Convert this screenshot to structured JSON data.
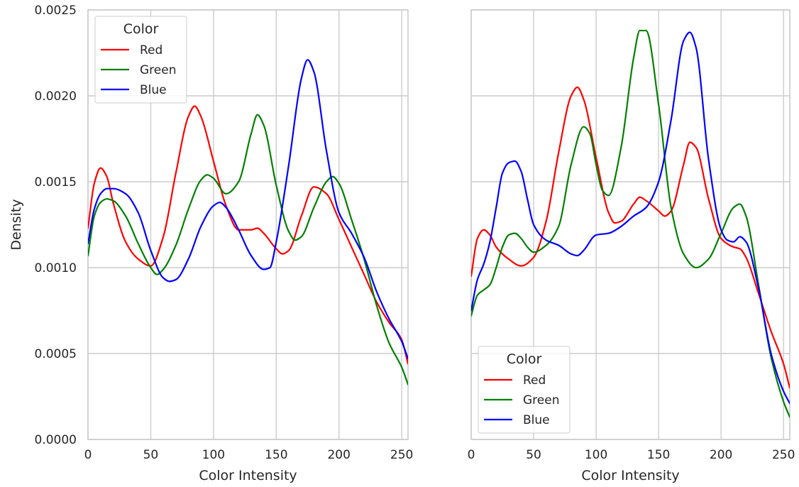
{
  "chart_data": [
    {
      "type": "line",
      "title": "",
      "xlabel": "Color Intensity",
      "ylabel": "Density",
      "xlim": [
        0,
        255
      ],
      "ylim": [
        0,
        0.0025
      ],
      "xticks": [
        0,
        50,
        100,
        150,
        200,
        250
      ],
      "yticks": [
        0.0,
        0.0005,
        0.001,
        0.0015,
        0.002,
        0.0025
      ],
      "ytick_labels": [
        "0.0000",
        "0.0005",
        "0.0010",
        "0.0015",
        "0.0020",
        "0.0025"
      ],
      "grid": true,
      "legend": {
        "title": "Color",
        "placement": "upper-left"
      },
      "series": [
        {
          "name": "Red",
          "color": "#ff0000",
          "x": [
            0,
            5,
            10,
            15,
            20,
            30,
            40,
            50,
            60,
            70,
            80,
            85,
            90,
            100,
            110,
            120,
            130,
            135,
            140,
            150,
            155,
            160,
            170,
            180,
            190,
            200,
            210,
            220,
            230,
            240,
            250,
            255
          ],
          "y": [
            0.00123,
            0.00149,
            0.00158,
            0.00153,
            0.00138,
            0.00115,
            0.00105,
            0.00101,
            0.00118,
            0.00155,
            0.00188,
            0.00194,
            0.00188,
            0.00162,
            0.00136,
            0.00122,
            0.00122,
            0.00123,
            0.0012,
            0.00111,
            0.00108,
            0.0011,
            0.0013,
            0.00147,
            0.00143,
            0.00128,
            0.00112,
            0.00096,
            0.0008,
            0.00068,
            0.00058,
            0.00044
          ]
        },
        {
          "name": "Green",
          "color": "#008000",
          "x": [
            0,
            5,
            10,
            15,
            20,
            30,
            40,
            50,
            55,
            60,
            70,
            80,
            90,
            95,
            100,
            110,
            120,
            130,
            135,
            140,
            150,
            160,
            165,
            170,
            180,
            190,
            195,
            200,
            210,
            220,
            230,
            240,
            250,
            255
          ],
          "y": [
            0.00107,
            0.0013,
            0.00138,
            0.0014,
            0.00139,
            0.0013,
            0.00114,
            0.001,
            0.00096,
            0.00099,
            0.00113,
            0.00134,
            0.00151,
            0.00154,
            0.00152,
            0.00143,
            0.0015,
            0.00178,
            0.00189,
            0.00183,
            0.00148,
            0.00121,
            0.00116,
            0.00118,
            0.00135,
            0.0015,
            0.00153,
            0.00149,
            0.00128,
            0.00105,
            0.00078,
            0.00056,
            0.00042,
            0.00032
          ]
        },
        {
          "name": "Blue",
          "color": "#0000ff",
          "x": [
            0,
            5,
            10,
            15,
            20,
            30,
            40,
            50,
            60,
            65,
            70,
            80,
            90,
            100,
            105,
            110,
            120,
            130,
            140,
            145,
            150,
            160,
            170,
            175,
            180,
            190,
            200,
            210,
            220,
            230,
            240,
            250,
            255
          ],
          "y": [
            0.00114,
            0.00134,
            0.00143,
            0.00146,
            0.00146,
            0.00143,
            0.00132,
            0.0011,
            0.00094,
            0.00092,
            0.00093,
            0.00105,
            0.00124,
            0.00136,
            0.00138,
            0.00135,
            0.00122,
            0.00107,
            0.00099,
            0.001,
            0.00115,
            0.0016,
            0.0021,
            0.00221,
            0.00214,
            0.00168,
            0.00132,
            0.0012,
            0.00106,
            0.00086,
            0.0007,
            0.00057,
            0.00047
          ]
        }
      ]
    },
    {
      "type": "line",
      "title": "",
      "xlabel": "Color Intensity",
      "ylabel": "",
      "xlim": [
        0,
        255
      ],
      "ylim": [
        0,
        0.0025
      ],
      "xticks": [
        0,
        50,
        100,
        150,
        200,
        250
      ],
      "yticks": [
        0.0,
        0.0005,
        0.001,
        0.0015,
        0.002,
        0.0025
      ],
      "show_ytick_labels": false,
      "grid": true,
      "legend": {
        "title": "Color",
        "placement": "lower-left"
      },
      "series": [
        {
          "name": "Red",
          "color": "#ff0000",
          "x": [
            0,
            5,
            10,
            15,
            20,
            30,
            40,
            50,
            60,
            70,
            80,
            85,
            90,
            100,
            110,
            115,
            120,
            130,
            135,
            140,
            150,
            155,
            160,
            170,
            175,
            180,
            190,
            200,
            210,
            215,
            220,
            230,
            240,
            250,
            255
          ],
          "y": [
            0.00095,
            0.00117,
            0.00122,
            0.00119,
            0.00112,
            0.00105,
            0.00101,
            0.00106,
            0.00127,
            0.00167,
            0.002,
            0.00205,
            0.00198,
            0.00164,
            0.00132,
            0.00126,
            0.00127,
            0.00137,
            0.00141,
            0.00139,
            0.00133,
            0.0013,
            0.00133,
            0.0016,
            0.00173,
            0.0017,
            0.0014,
            0.00117,
            0.00112,
            0.00111,
            0.00106,
            0.00085,
            0.00063,
            0.00044,
            0.0003
          ]
        },
        {
          "name": "Green",
          "color": "#008000",
          "x": [
            0,
            5,
            10,
            15,
            20,
            25,
            30,
            35,
            40,
            45,
            50,
            60,
            70,
            80,
            90,
            95,
            100,
            105,
            110,
            120,
            130,
            135,
            140,
            150,
            160,
            170,
            180,
            190,
            200,
            210,
            215,
            220,
            230,
            240,
            250,
            255
          ],
          "y": [
            0.00072,
            0.00084,
            0.00087,
            0.0009,
            0.001,
            0.00112,
            0.00119,
            0.0012,
            0.00117,
            0.00112,
            0.00109,
            0.00113,
            0.00124,
            0.0016,
            0.00182,
            0.00178,
            0.0016,
            0.00145,
            0.00142,
            0.0017,
            0.00222,
            0.00238,
            0.00238,
            0.00195,
            0.00135,
            0.00108,
            0.001,
            0.00105,
            0.0012,
            0.00135,
            0.00137,
            0.0013,
            0.0009,
            0.00048,
            0.00022,
            0.00013
          ]
        },
        {
          "name": "Blue",
          "color": "#0000ff",
          "x": [
            0,
            5,
            10,
            15,
            20,
            25,
            30,
            35,
            40,
            45,
            50,
            60,
            70,
            80,
            85,
            90,
            100,
            110,
            120,
            130,
            140,
            150,
            160,
            170,
            175,
            180,
            190,
            200,
            205,
            210,
            215,
            220,
            230,
            240,
            250,
            255
          ],
          "y": [
            0.00075,
            0.00093,
            0.00102,
            0.00115,
            0.00135,
            0.00155,
            0.00161,
            0.00162,
            0.00156,
            0.0014,
            0.00125,
            0.00116,
            0.00113,
            0.00108,
            0.00107,
            0.0011,
            0.00119,
            0.0012,
            0.00124,
            0.0013,
            0.00135,
            0.0015,
            0.00186,
            0.00232,
            0.00237,
            0.00228,
            0.00163,
            0.00122,
            0.00116,
            0.00115,
            0.00118,
            0.00115,
            0.00088,
            0.0005,
            0.00028,
            0.00021
          ]
        }
      ]
    }
  ]
}
